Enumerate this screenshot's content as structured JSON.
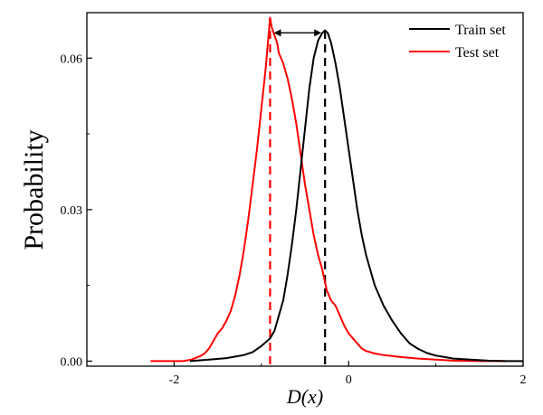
{
  "chart_data": {
    "type": "line",
    "title": "",
    "xlabel": "D(x)",
    "ylabel": "Probability",
    "xlim": [
      -3.0,
      2.0
    ],
    "ylim": [
      -0.001,
      0.069
    ],
    "x_ticks": [
      -2,
      0,
      2
    ],
    "x_tick_labels": [
      "-2",
      "0",
      "2"
    ],
    "y_ticks": [
      0.0,
      0.03,
      0.06
    ],
    "y_tick_labels": [
      "0.00",
      "0.03",
      "0.06"
    ],
    "grid": false,
    "legend_position": "top-right",
    "series": [
      {
        "name": "Train set",
        "color": "#000000",
        "x": [
          -1.82,
          -1.6,
          -1.4,
          -1.2,
          -1.1,
          -1.0,
          -0.9,
          -0.85,
          -0.8,
          -0.75,
          -0.7,
          -0.65,
          -0.6,
          -0.55,
          -0.5,
          -0.45,
          -0.4,
          -0.35,
          -0.3,
          -0.27,
          -0.24,
          -0.2,
          -0.15,
          -0.1,
          -0.05,
          0.0,
          0.05,
          0.1,
          0.15,
          0.2,
          0.3,
          0.4,
          0.5,
          0.6,
          0.7,
          0.8,
          0.9,
          1.0,
          1.1,
          1.2,
          1.4,
          1.6,
          1.8,
          2.0
        ],
        "y": [
          0.0,
          0.0003,
          0.0006,
          0.0012,
          0.0018,
          0.003,
          0.0045,
          0.006,
          0.009,
          0.012,
          0.017,
          0.023,
          0.03,
          0.038,
          0.046,
          0.054,
          0.06,
          0.0635,
          0.065,
          0.0655,
          0.065,
          0.063,
          0.059,
          0.054,
          0.048,
          0.042,
          0.036,
          0.03,
          0.025,
          0.021,
          0.015,
          0.011,
          0.008,
          0.0055,
          0.0035,
          0.0024,
          0.0016,
          0.0011,
          0.0008,
          0.0005,
          0.0003,
          0.0001,
          0.0,
          0.0
        ]
      },
      {
        "name": "Test set",
        "color": "#ff0000",
        "x": [
          -2.27,
          -2.1,
          -1.9,
          -1.8,
          -1.7,
          -1.65,
          -1.6,
          -1.55,
          -1.5,
          -1.45,
          -1.4,
          -1.35,
          -1.3,
          -1.25,
          -1.2,
          -1.15,
          -1.1,
          -1.05,
          -1.0,
          -0.95,
          -0.92,
          -0.9,
          -0.88,
          -0.85,
          -0.82,
          -0.8,
          -0.75,
          -0.7,
          -0.65,
          -0.6,
          -0.55,
          -0.5,
          -0.45,
          -0.4,
          -0.35,
          -0.3,
          -0.25,
          -0.2,
          -0.15,
          -0.1,
          -0.05,
          0.0,
          0.05,
          0.1,
          0.15,
          0.2,
          0.3,
          0.4,
          0.5,
          0.6,
          0.8,
          1.0,
          1.2,
          1.5,
          1.8
        ],
        "y": [
          0.0,
          0.0,
          0.0,
          0.0003,
          0.001,
          0.0015,
          0.0025,
          0.004,
          0.0055,
          0.0065,
          0.008,
          0.01,
          0.013,
          0.017,
          0.022,
          0.028,
          0.035,
          0.042,
          0.05,
          0.058,
          0.064,
          0.068,
          0.066,
          0.0645,
          0.063,
          0.061,
          0.059,
          0.056,
          0.052,
          0.047,
          0.041,
          0.035,
          0.03,
          0.025,
          0.021,
          0.018,
          0.014,
          0.012,
          0.011,
          0.009,
          0.007,
          0.0055,
          0.0045,
          0.0035,
          0.0025,
          0.002,
          0.0015,
          0.0012,
          0.001,
          0.0008,
          0.0005,
          0.0003,
          0.0001,
          0.0,
          0.0
        ]
      }
    ],
    "annotations": [
      {
        "type": "vline",
        "x": -0.9,
        "color": "#ff0000",
        "style": "dashed",
        "y_top": 0.068
      },
      {
        "type": "vline",
        "x": -0.27,
        "color": "#000000",
        "style": "dashed",
        "y_top": 0.0655
      },
      {
        "type": "double-arrow",
        "x_from": -0.9,
        "x_to": -0.27,
        "y": 0.065,
        "color": "#000000"
      }
    ]
  }
}
